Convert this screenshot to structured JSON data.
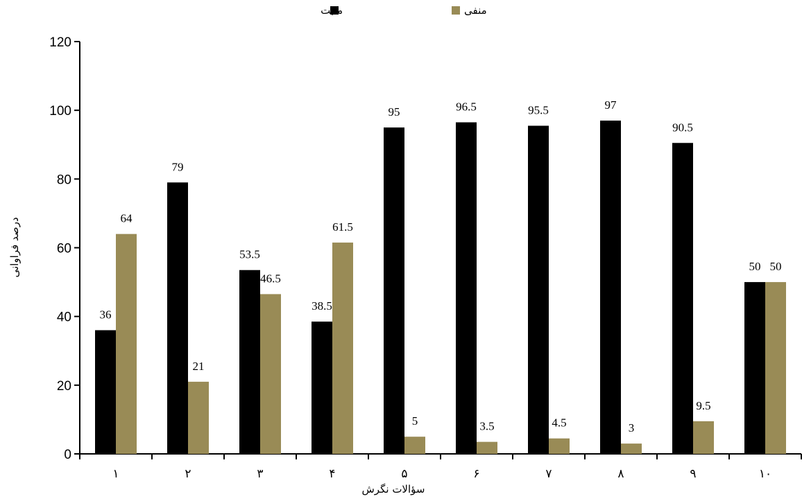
{
  "chart_data": {
    "type": "bar",
    "title": "",
    "xlabel": "سؤالات نگرش",
    "ylabel": "درصد فراوانی",
    "categories": [
      "۱",
      "۲",
      "۳",
      "۴",
      "۵",
      "۶",
      "۷",
      "۸",
      "۹",
      "۱۰"
    ],
    "series": [
      {
        "name": "مثبت",
        "color": "#000000",
        "values": [
          36,
          79,
          53.5,
          38.5,
          95,
          96.5,
          95.5,
          97,
          90.5,
          50
        ]
      },
      {
        "name": "منفی",
        "color": "#998b56",
        "values": [
          64,
          21,
          46.5,
          61.5,
          5,
          3.5,
          4.5,
          3,
          9.5,
          50
        ]
      }
    ],
    "ylim": [
      0,
      120
    ],
    "yticks": [
      0,
      20,
      40,
      60,
      80,
      100,
      120
    ],
    "grid": false,
    "legend_position": "top-center",
    "data_labels": true
  }
}
